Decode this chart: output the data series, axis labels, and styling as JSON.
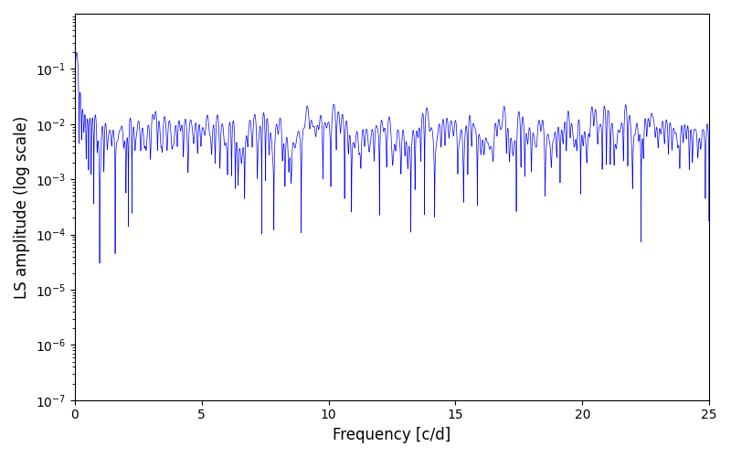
{
  "title": "",
  "xlabel": "Frequency [c/d]",
  "ylabel": "LS amplitude (log scale)",
  "xlim": [
    0,
    25
  ],
  "ylim": [
    1e-07,
    1
  ],
  "yscale": "log",
  "line_color": "blue",
  "line_width": 0.5,
  "figsize": [
    8.0,
    5.0
  ],
  "dpi": 100,
  "yticks": [
    1e-07,
    1e-06,
    1e-05,
    0.0001,
    0.001,
    0.01,
    0.1
  ],
  "xticks": [
    0,
    5,
    10,
    15,
    20,
    25
  ],
  "seed": 12345
}
